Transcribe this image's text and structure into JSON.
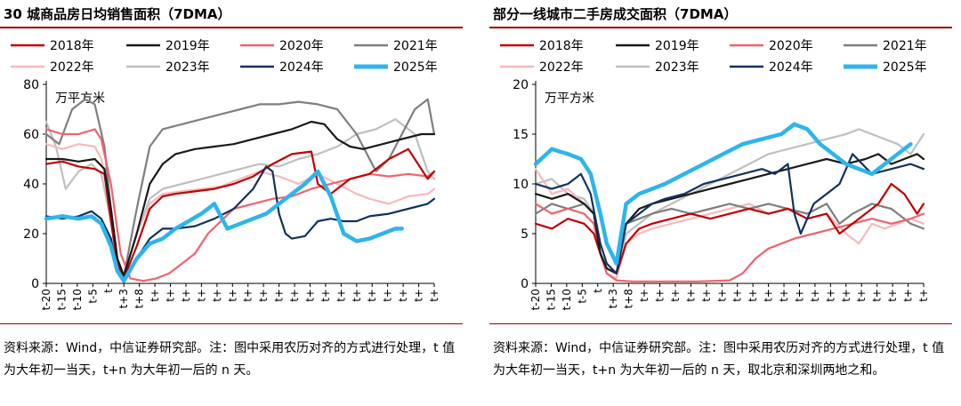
{
  "source_left": "资料来源：Wind，中信证券研究部。注：图中采用农历对齐的方式进行处理，t 值为大年初一当天，t+n 为大年初一后的 n 天。",
  "source_right": "资料来源：Wind，中信证券研究部。注：图中采用农历对齐的方式进行处理，t 值为大年初一当天，t+n 为大年初一后的 n 天，取北京和深圳两地之和。",
  "colors": {
    "2018": "#c00000",
    "2019": "#1a1a1a",
    "2020": "#f0626e",
    "2021": "#7f7f7f",
    "2022": "#f7b8bd",
    "2023": "#bfbfbf",
    "2024": "#10325f",
    "2025": "#2fb4ec"
  },
  "chart_data": [
    {
      "type": "line",
      "title": "30 城商品房日均销售面积（7DMA）",
      "unit_label": "万平方米",
      "ylim": [
        0,
        80
      ],
      "yticks": [
        "0",
        "20",
        "40",
        "60",
        "80"
      ],
      "xlim": [
        -20,
        100
      ],
      "xticks": [
        "t-20",
        "t-15",
        "t-10",
        "t-5",
        "t",
        "t+3",
        "t+8",
        "t+",
        "t+",
        "t+",
        "t+",
        "t+",
        "t+",
        "t+",
        "t+",
        "t+",
        "t+",
        "t+",
        "t+",
        "t+",
        "t+",
        "t+",
        "t+",
        "t+",
        "t+",
        "t+"
      ],
      "legend": [
        "2018年",
        "2019年",
        "2020年",
        "2021年",
        "2022年",
        "2023年",
        "2024年",
        "2025年"
      ],
      "series": [
        {
          "name": "2018年",
          "x": [
            -20,
            -15,
            -10,
            -5,
            -2,
            0,
            2,
            4,
            8,
            12,
            16,
            20,
            26,
            32,
            38,
            44,
            50,
            56,
            62,
            64,
            68,
            74,
            80,
            86,
            92,
            98,
            100
          ],
          "y": [
            48,
            49,
            47,
            46,
            44,
            25,
            8,
            2,
            15,
            30,
            35,
            36,
            37,
            38,
            40,
            43,
            48,
            52,
            53,
            40,
            36,
            42,
            44,
            50,
            54,
            42,
            45
          ]
        },
        {
          "name": "2019年",
          "x": [
            -20,
            -15,
            -10,
            -5,
            -2,
            0,
            2,
            4,
            8,
            12,
            16,
            20,
            26,
            32,
            38,
            44,
            50,
            56,
            62,
            66,
            70,
            74,
            78,
            84,
            90,
            96,
            100
          ],
          "y": [
            50,
            50,
            49,
            50,
            46,
            30,
            10,
            3,
            20,
            40,
            48,
            52,
            54,
            55,
            56,
            58,
            60,
            62,
            65,
            64,
            58,
            55,
            54,
            56,
            58,
            60,
            60
          ]
        },
        {
          "name": "2020年",
          "x": [
            -20,
            -15,
            -10,
            -5,
            -3,
            0,
            3,
            6,
            10,
            14,
            18,
            22,
            26,
            30,
            34,
            38,
            44,
            50,
            56,
            62,
            68,
            74,
            80,
            86,
            92,
            98,
            100
          ],
          "y": [
            62,
            60,
            60,
            62,
            58,
            40,
            12,
            2,
            1,
            2,
            4,
            8,
            12,
            20,
            25,
            30,
            32,
            34,
            35,
            38,
            40,
            42,
            44,
            43,
            44,
            43,
            45
          ]
        },
        {
          "name": "2021年",
          "x": [
            -20,
            -16,
            -12,
            -8,
            -5,
            -2,
            0,
            2,
            4,
            8,
            12,
            16,
            22,
            28,
            34,
            40,
            46,
            52,
            58,
            64,
            70,
            76,
            82,
            86,
            90,
            94,
            98,
            100
          ],
          "y": [
            60,
            56,
            70,
            74,
            72,
            55,
            30,
            10,
            3,
            30,
            55,
            62,
            64,
            66,
            68,
            70,
            72,
            72,
            73,
            72,
            70,
            60,
            45,
            50,
            60,
            70,
            74,
            60
          ]
        },
        {
          "name": "2022年",
          "x": [
            -20,
            -15,
            -10,
            -5,
            -3,
            0,
            2,
            4,
            8,
            12,
            16,
            22,
            28,
            34,
            40,
            46,
            52,
            58,
            64,
            70,
            76,
            80,
            86,
            92,
            98,
            100
          ],
          "y": [
            56,
            54,
            56,
            55,
            50,
            30,
            10,
            3,
            20,
            32,
            36,
            37,
            38,
            39,
            42,
            45,
            43,
            40,
            44,
            40,
            36,
            34,
            32,
            35,
            36,
            38
          ]
        },
        {
          "name": "2023年",
          "x": [
            -20,
            -17,
            -14,
            -10,
            -6,
            -3,
            0,
            2,
            4,
            8,
            12,
            16,
            22,
            28,
            34,
            40,
            46,
            52,
            58,
            64,
            70,
            76,
            82,
            88,
            94,
            98,
            100
          ],
          "y": [
            65,
            55,
            38,
            45,
            48,
            44,
            25,
            8,
            3,
            20,
            34,
            38,
            40,
            42,
            44,
            46,
            48,
            47,
            50,
            52,
            55,
            60,
            62,
            66,
            60,
            45,
            42
          ]
        },
        {
          "name": "2024年",
          "x": [
            -20,
            -15,
            -10,
            -6,
            -3,
            0,
            2,
            4,
            8,
            12,
            16,
            20,
            26,
            32,
            38,
            44,
            48,
            50,
            52,
            54,
            56,
            60,
            64,
            68,
            72,
            76,
            80,
            86,
            92,
            98,
            100
          ],
          "y": [
            27,
            26,
            27,
            29,
            26,
            18,
            6,
            1,
            10,
            18,
            22,
            22,
            23,
            26,
            30,
            38,
            47,
            45,
            28,
            20,
            18,
            19,
            25,
            26,
            25,
            25,
            27,
            28,
            30,
            32,
            34
          ]
        },
        {
          "name": "2025年",
          "x": [
            -20,
            -15,
            -10,
            -6,
            -3,
            0,
            2,
            4,
            8,
            12,
            16,
            20,
            24,
            28,
            32,
            36,
            40,
            44,
            48,
            52,
            56,
            60,
            64,
            68,
            72,
            76,
            80,
            84,
            88,
            90
          ],
          "y": [
            26,
            27,
            26,
            27,
            24,
            15,
            5,
            1,
            10,
            16,
            18,
            22,
            25,
            28,
            32,
            22,
            24,
            26,
            28,
            32,
            36,
            40,
            45,
            35,
            20,
            17,
            18,
            20,
            22,
            22
          ]
        }
      ]
    },
    {
      "type": "line",
      "title": "部分一线城市二手房成交面积（7DMA）",
      "unit_label": "万平方米",
      "ylim": [
        0,
        20
      ],
      "yticks": [
        "0",
        "5",
        "10",
        "15",
        "20"
      ],
      "xlim": [
        -20,
        100
      ],
      "xticks": [
        "t-20",
        "t-15",
        "t-10",
        "t-5",
        "t",
        "t+3",
        "t+8",
        "t+",
        "t+",
        "t+",
        "t+",
        "t+",
        "t+",
        "t+",
        "t+",
        "t+",
        "t+",
        "t+",
        "t+",
        "t+",
        "t+",
        "t+",
        "t+",
        "t+",
        "t+",
        "t+"
      ],
      "legend": [
        "2018年",
        "2019年",
        "2020年",
        "2021年",
        "2022年",
        "2023年",
        "2024年",
        "2025年"
      ],
      "series": [
        {
          "name": "2018年",
          "x": [
            -20,
            -15,
            -10,
            -5,
            -2,
            0,
            2,
            5,
            8,
            12,
            16,
            22,
            28,
            34,
            40,
            46,
            52,
            58,
            64,
            70,
            74,
            78,
            82,
            86,
            90,
            94,
            98,
            100
          ],
          "y": [
            6,
            5.5,
            6.5,
            6,
            5,
            3,
            1.5,
            1,
            4,
            5.5,
            6,
            6.5,
            7,
            6.5,
            7,
            7.5,
            7,
            7.5,
            6.5,
            7,
            5,
            6,
            7,
            8,
            10,
            9,
            7,
            8
          ]
        },
        {
          "name": "2019年",
          "x": [
            -20,
            -15,
            -10,
            -5,
            -2,
            0,
            2,
            5,
            8,
            12,
            16,
            22,
            28,
            34,
            40,
            46,
            52,
            58,
            64,
            70,
            76,
            82,
            86,
            90,
            94,
            98,
            100
          ],
          "y": [
            9,
            8.5,
            9,
            8,
            7,
            3,
            1.5,
            1,
            6,
            7.5,
            8,
            8.5,
            9,
            9.5,
            10,
            10.5,
            11,
            11.5,
            12,
            12.5,
            12,
            12.5,
            13,
            12,
            12.5,
            13,
            12.5
          ]
        },
        {
          "name": "2020年",
          "x": [
            -20,
            -15,
            -10,
            -5,
            -2,
            0,
            2,
            5,
            10,
            15,
            20,
            30,
            40,
            44,
            48,
            52,
            56,
            60,
            66,
            72,
            78,
            84,
            90,
            96,
            100
          ],
          "y": [
            8,
            7,
            7.5,
            7,
            6,
            3,
            1,
            0.3,
            0.2,
            0.2,
            0.2,
            0.2,
            0.3,
            1,
            2.5,
            3.5,
            4,
            4.5,
            5,
            5.5,
            6,
            6.5,
            6,
            6.5,
            7
          ]
        },
        {
          "name": "2021年",
          "x": [
            -20,
            -15,
            -10,
            -5,
            -2,
            0,
            2,
            5,
            8,
            12,
            16,
            22,
            28,
            34,
            40,
            46,
            52,
            58,
            64,
            70,
            74,
            78,
            84,
            90,
            96,
            100
          ],
          "y": [
            7,
            8,
            7.5,
            8,
            7,
            3,
            1.5,
            1,
            6,
            6.5,
            7,
            7.5,
            7,
            7.5,
            8,
            7.5,
            8,
            7.5,
            7,
            8,
            6,
            7,
            8,
            7.5,
            6,
            5.5
          ]
        },
        {
          "name": "2022年",
          "x": [
            -20,
            -15,
            -10,
            -5,
            -2,
            0,
            2,
            5,
            8,
            12,
            16,
            22,
            28,
            34,
            40,
            46,
            52,
            58,
            64,
            70,
            76,
            80,
            84,
            88,
            92,
            96,
            100
          ],
          "y": [
            11.5,
            9,
            9.5,
            8,
            7,
            3,
            1,
            0.5,
            4,
            5,
            5.5,
            6,
            6.5,
            7,
            7.5,
            8,
            7,
            7.5,
            6.5,
            7,
            5,
            4,
            6,
            5.5,
            6,
            6.5,
            6
          ]
        },
        {
          "name": "2023年",
          "x": [
            -20,
            -15,
            -10,
            -5,
            -2,
            0,
            2,
            5,
            8,
            12,
            16,
            22,
            28,
            34,
            40,
            46,
            52,
            58,
            64,
            70,
            76,
            80,
            84,
            88,
            92,
            96,
            100
          ],
          "y": [
            10,
            10.5,
            9,
            8.5,
            7,
            3,
            1,
            0.5,
            5,
            6,
            7,
            8,
            9,
            10,
            11,
            12,
            13,
            13.5,
            14,
            14.5,
            15,
            15.5,
            15,
            14.5,
            14,
            13,
            15
          ]
        },
        {
          "name": "2024年",
          "x": [
            -20,
            -15,
            -10,
            -6,
            -3,
            0,
            2,
            5,
            8,
            12,
            16,
            20,
            26,
            32,
            38,
            44,
            50,
            54,
            58,
            60,
            62,
            66,
            70,
            74,
            78,
            84,
            90,
            96,
            100
          ],
          "y": [
            10,
            9.5,
            10,
            11,
            9,
            4,
            2,
            1,
            6,
            7,
            8,
            8.5,
            9,
            10,
            10.5,
            11,
            11.5,
            11,
            12,
            7,
            5,
            8,
            9,
            10,
            13,
            11,
            11.5,
            12,
            11.5
          ]
        },
        {
          "name": "2025年",
          "x": [
            -20,
            -15,
            -10,
            -6,
            -3,
            0,
            2,
            5,
            8,
            12,
            16,
            20,
            26,
            32,
            38,
            44,
            50,
            56,
            60,
            64,
            68,
            72,
            76,
            80,
            84,
            88,
            92,
            96
          ],
          "y": [
            12,
            13.5,
            13,
            12.5,
            11,
            7,
            4,
            2,
            8,
            9,
            9.5,
            10,
            11,
            12,
            13,
            14,
            14.5,
            15,
            16,
            15.5,
            14,
            13,
            12,
            11.5,
            11,
            12,
            13,
            14
          ]
        }
      ]
    }
  ]
}
